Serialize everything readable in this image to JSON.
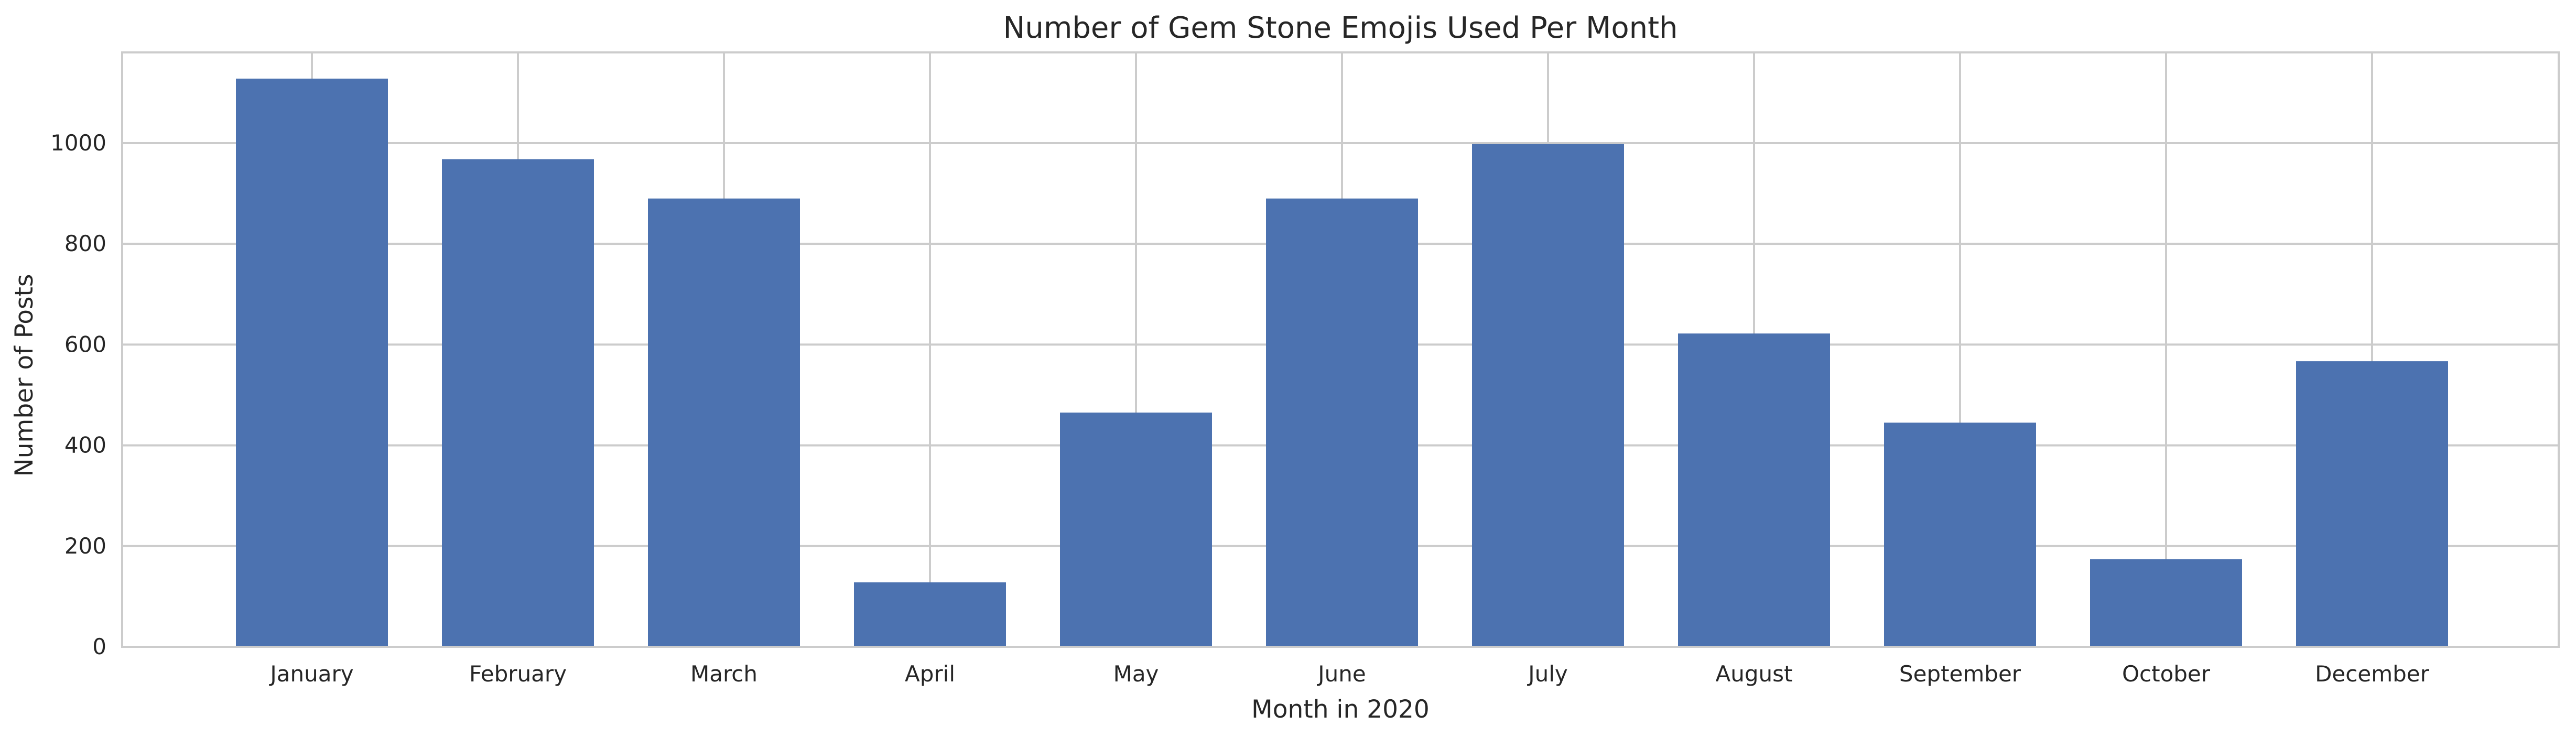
{
  "chart_data": {
    "type": "bar",
    "title": "Number of Gem Stone Emojis Used Per Month",
    "xlabel": "Month in 2020",
    "ylabel": "Number of Posts",
    "categories": [
      "January",
      "February",
      "March",
      "April",
      "May",
      "June",
      "July",
      "August",
      "September",
      "October",
      "December"
    ],
    "values": [
      1128,
      968,
      890,
      128,
      465,
      890,
      998,
      622,
      445,
      174,
      567
    ],
    "ylim": [
      0,
      1180
    ],
    "yticks": [
      0,
      200,
      400,
      600,
      800,
      1000
    ],
    "grid": true,
    "bar_color": "#4c72b0",
    "grid_color": "#cccccc",
    "axes_edge_color": "#cccccc",
    "background": "#ffffff"
  }
}
